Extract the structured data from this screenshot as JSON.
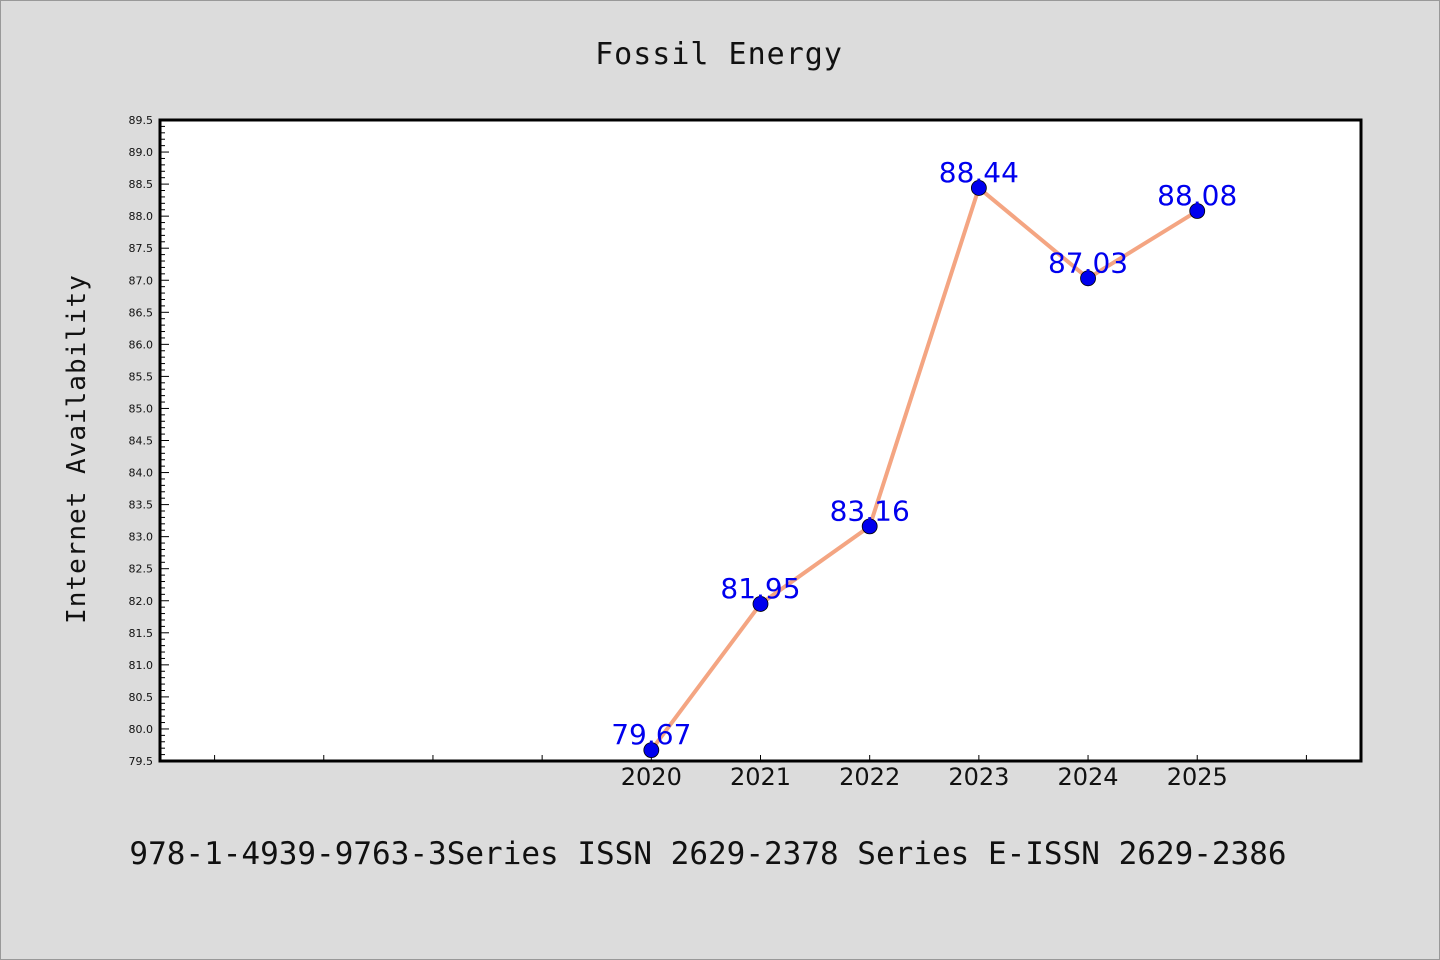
{
  "chart_data": {
    "type": "line",
    "title": "Fossil Energy",
    "xlabel": "",
    "ylabel": "Internet Availability",
    "x": [
      2020,
      2021,
      2022,
      2023,
      2024,
      2025
    ],
    "x_tick_labels": [
      "2020",
      "2021",
      "2022",
      "2023",
      "2024",
      "2025"
    ],
    "series": [
      {
        "values": [
          79.67,
          81.95,
          83.16,
          88.44,
          87.03,
          88.08
        ],
        "labels": [
          "79.67",
          "81.95",
          "83.16",
          "88.44",
          "87.03",
          "88.08"
        ],
        "line_color": "#f4a582",
        "marker_color": "#0000ee",
        "label_color": "#0000ee"
      }
    ],
    "xlim": [
      2015.5,
      2026.5
    ],
    "ylim": [
      79.5,
      89.5
    ],
    "y_ticks": [
      "79.5",
      "80.0",
      "80.5",
      "81.0",
      "81.5",
      "82.0",
      "82.5",
      "83.0",
      "83.5",
      "84.0",
      "84.5",
      "85.0",
      "85.5",
      "86.0",
      "86.5",
      "87.0",
      "87.5",
      "88.0",
      "88.5",
      "89.0",
      "89.5"
    ],
    "grid": false,
    "legend": "none",
    "background_color": "#dcdcdc",
    "plot_background_color": "#ffffff"
  },
  "footer": {
    "text": "978-1-4939-9763-3Series ISSN 2629-2378 Series E-ISSN 2629-2386"
  }
}
